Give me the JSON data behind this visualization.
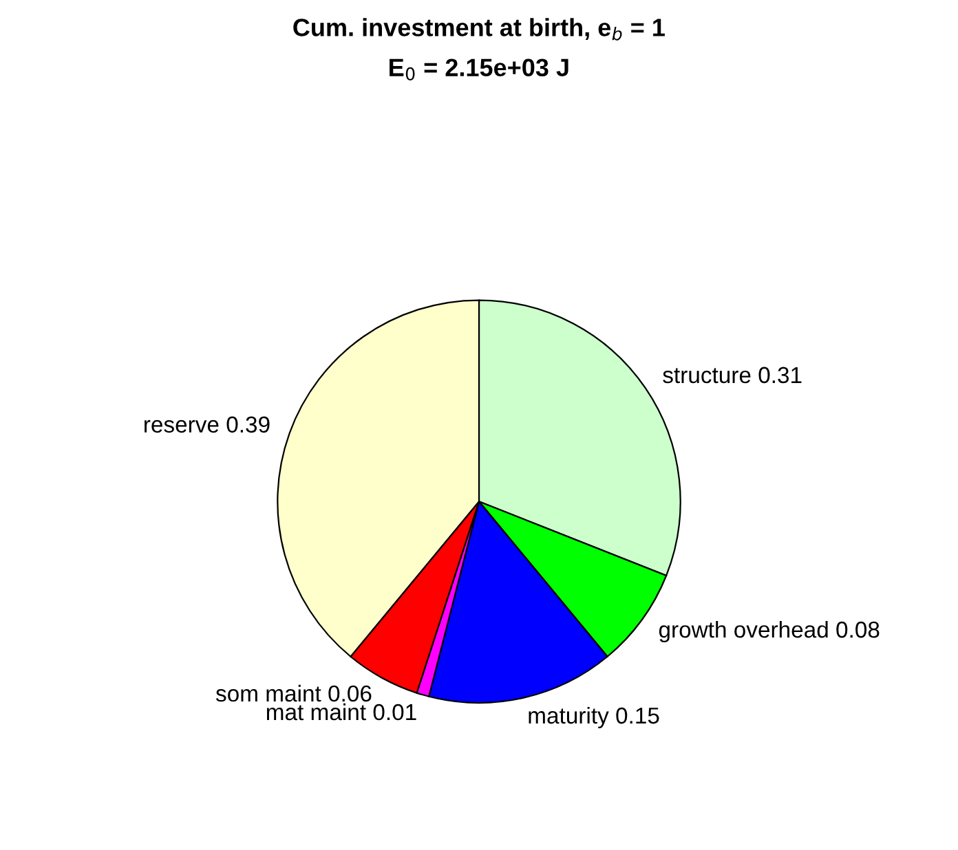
{
  "chart_data": {
    "type": "pie",
    "title": "Cum. investment at birth, e$_{b}$ = 1",
    "subtitle": "E$_{0}$ = 2.15e+03 J",
    "categories": [
      "structure 0.31",
      "growth overhead 0.08",
      "maturity 0.15",
      "mat maint 0.01",
      "som maint 0.06",
      "reserve 0.39"
    ],
    "values": [
      0.31,
      0.08,
      0.15,
      0.01,
      0.06,
      0.39
    ],
    "colors": [
      "#ccffcc",
      "#00ff00",
      "#0000ff",
      "#ff00ff",
      "#ff0000",
      "#ffffcc"
    ],
    "legend": false
  }
}
